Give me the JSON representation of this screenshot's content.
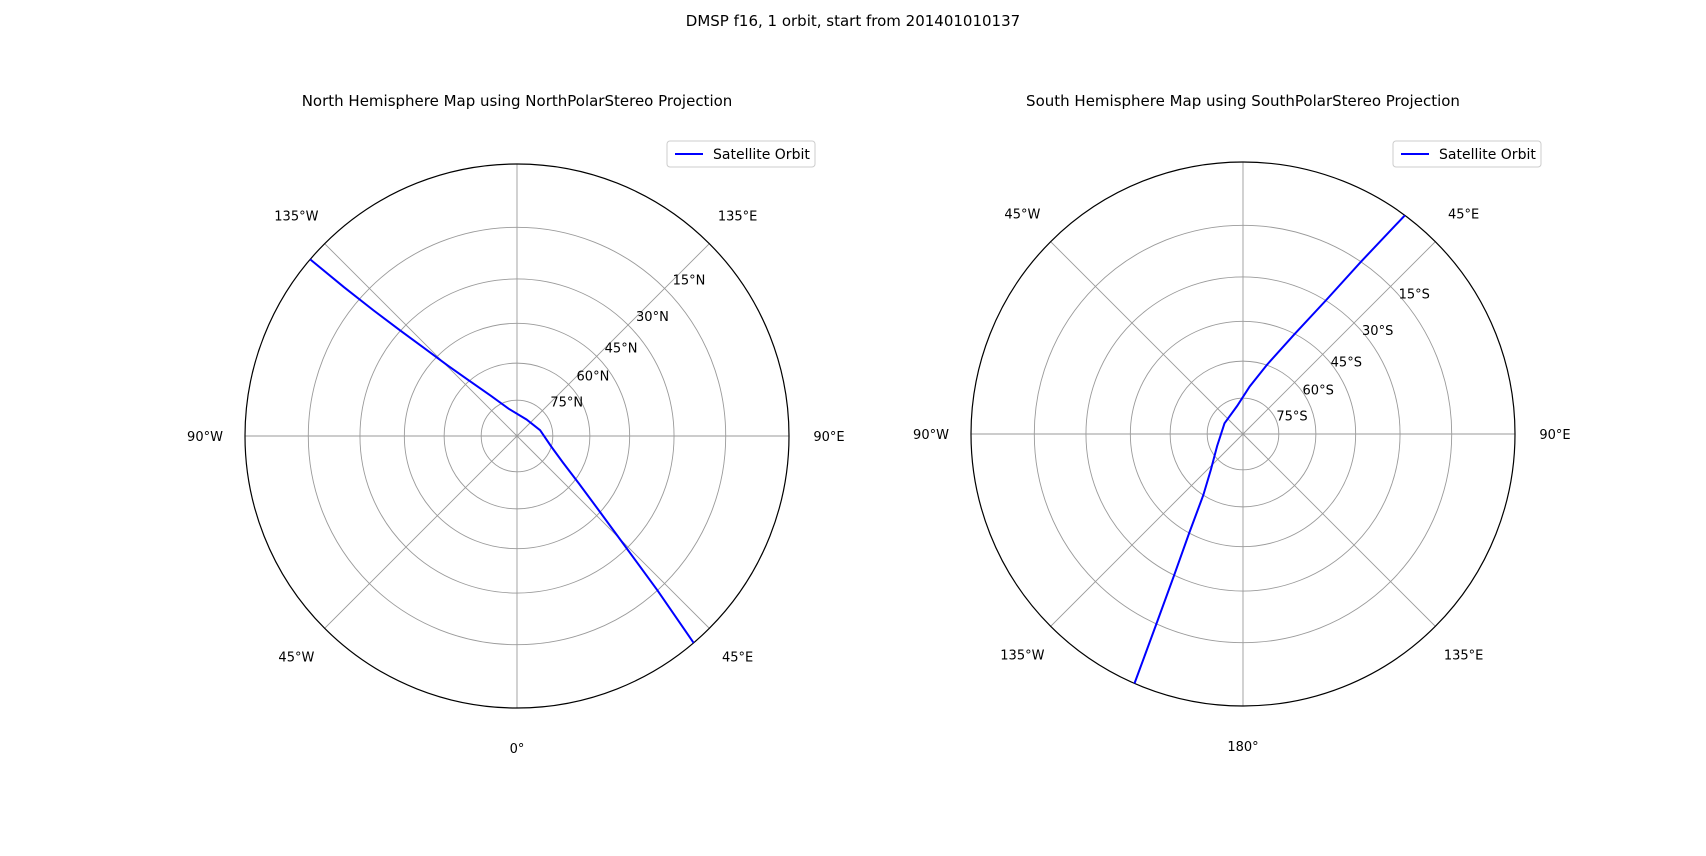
{
  "figure": {
    "title": "DMSP f16, 1 orbit, start from 201401010137",
    "orbit_color": "#0000ff"
  },
  "chart_data": [
    {
      "type": "line",
      "projection": "NorthPolarStereo",
      "title": "North Hemisphere Map using NorthPolarStereo Projection",
      "hemisphere": "north",
      "legend": {
        "label": "Satellite Orbit",
        "placement": "upper-right"
      },
      "lat_circles": [
        75,
        60,
        45,
        30,
        15
      ],
      "lat_labels": [
        "75°N",
        "60°N",
        "45°N",
        "30°N",
        "15°N"
      ],
      "lon_labels": [
        {
          "lon": -135,
          "text": "135°W"
        },
        {
          "lon": 135,
          "text": "135°E"
        },
        {
          "lon": -90,
          "text": "90°W"
        },
        {
          "lon": 90,
          "text": "90°E"
        },
        {
          "lon": -45,
          "text": "45°W"
        },
        {
          "lon": 45,
          "text": "45°E"
        },
        {
          "lon": 0,
          "text": "0°"
        }
      ],
      "series": [
        {
          "name": "Satellite Orbit",
          "points": [
            {
              "lat": 0,
              "lon": -130.5
            },
            {
              "lat": 10,
              "lon": -130.7
            },
            {
              "lat": 20,
              "lon": -131.2
            },
            {
              "lat": 30,
              "lon": -132.1
            },
            {
              "lat": 40,
              "lon": -133.5
            },
            {
              "lat": 50,
              "lon": -135.5
            },
            {
              "lat": 60,
              "lon": -139.2
            },
            {
              "lat": 70,
              "lon": -147
            },
            {
              "lat": 78,
              "lon": -163
            },
            {
              "lat": 82,
              "lon": 150
            },
            {
              "lat": 80,
              "lon": 104
            },
            {
              "lat": 75,
              "lon": 73
            },
            {
              "lat": 68,
              "lon": 60
            },
            {
              "lat": 58,
              "lon": 52.5
            },
            {
              "lat": 45,
              "lon": 47.5
            },
            {
              "lat": 30,
              "lon": 44.3
            },
            {
              "lat": 15,
              "lon": 42.3
            },
            {
              "lat": 0,
              "lon": 40.5
            }
          ]
        }
      ]
    },
    {
      "type": "line",
      "projection": "SouthPolarStereo",
      "title": "South Hemisphere Map using SouthPolarStereo Projection",
      "hemisphere": "south",
      "legend": {
        "label": "Satellite Orbit",
        "placement": "upper-right"
      },
      "lat_circles": [
        -75,
        -60,
        -45,
        -30,
        -15
      ],
      "lat_labels": [
        "75°S",
        "60°S",
        "45°S",
        "30°S",
        "15°S"
      ],
      "lon_labels": [
        {
          "lon": -45,
          "text": "45°W"
        },
        {
          "lon": 45,
          "text": "45°E"
        },
        {
          "lon": -90,
          "text": "90°W"
        },
        {
          "lon": 90,
          "text": "90°E"
        },
        {
          "lon": -135,
          "text": "135°W"
        },
        {
          "lon": 135,
          "text": "135°E"
        },
        {
          "lon": 180,
          "text": "180°"
        }
      ],
      "series": [
        {
          "name": "Satellite Orbit",
          "points": [
            {
              "lat": 0,
              "lon": 36.5
            },
            {
              "lat": -15,
              "lon": 34.4
            },
            {
              "lat": -30,
              "lon": 31.8
            },
            {
              "lat": -45,
              "lon": 27.3
            },
            {
              "lat": -60,
              "lon": 19
            },
            {
              "lat": -70,
              "lon": 8
            },
            {
              "lat": -78,
              "lon": -12
            },
            {
              "lat": -81,
              "lon": -60
            },
            {
              "lat": -78,
              "lon": -115
            },
            {
              "lat": -70,
              "lon": -138
            },
            {
              "lat": -60,
              "lon": -147
            },
            {
              "lat": -45,
              "lon": -151.5
            },
            {
              "lat": -30,
              "lon": -154
            },
            {
              "lat": -15,
              "lon": -155.5
            },
            {
              "lat": 0,
              "lon": -156.5
            }
          ]
        }
      ]
    }
  ]
}
